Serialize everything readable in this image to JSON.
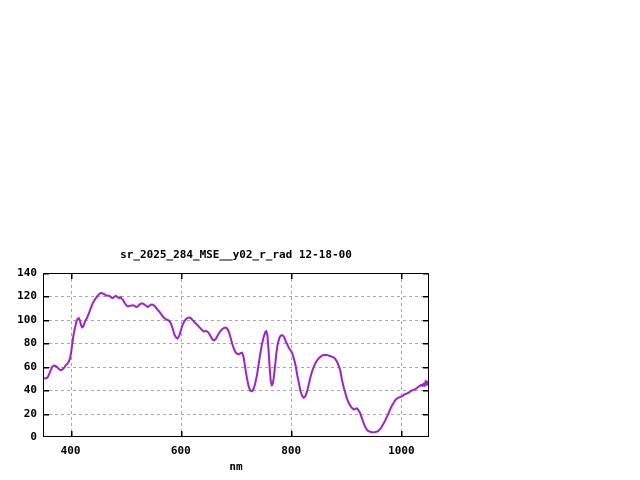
{
  "chart_data": {
    "type": "line",
    "title": "sr_2025_284_MSE__y02_r_rad 12-18-00",
    "xlabel": "nm",
    "ylabel": "",
    "xlim": [
      350,
      1050
    ],
    "ylim": [
      0,
      140
    ],
    "xticks": [
      400,
      600,
      800,
      1000
    ],
    "yticks": [
      0,
      20,
      40,
      60,
      80,
      100,
      120,
      140
    ],
    "grid": true,
    "legend_position": "none",
    "line_color": "#a020d0",
    "grid_color": "#a8a8a8",
    "border_color": "#000000",
    "x": [
      350,
      354,
      358,
      361,
      364,
      367,
      370,
      373,
      376,
      379,
      382,
      385,
      388,
      391,
      394,
      397,
      399,
      401,
      403,
      405,
      407,
      409,
      411,
      413,
      415,
      417,
      419,
      421,
      423,
      425,
      427,
      429,
      431,
      434,
      437,
      440,
      443,
      446,
      449,
      452,
      455,
      458,
      461,
      464,
      467,
      470,
      473,
      476,
      479,
      482,
      485,
      488,
      490,
      492,
      495,
      498,
      501,
      504,
      507,
      510,
      513,
      516,
      519,
      522,
      525,
      528,
      531,
      534,
      537,
      540,
      543,
      546,
      549,
      552,
      555,
      558,
      561,
      564,
      567,
      570,
      573,
      576,
      579,
      582,
      585,
      588,
      591,
      594,
      597,
      600,
      603,
      606,
      609,
      612,
      615,
      618,
      621,
      624,
      627,
      630,
      633,
      636,
      639,
      642,
      645,
      648,
      651,
      654,
      657,
      660,
      663,
      666,
      669,
      672,
      675,
      678,
      681,
      684,
      687,
      690,
      693,
      696,
      699,
      702,
      705,
      708,
      711,
      714,
      717,
      720,
      723,
      726,
      729,
      732,
      735,
      738,
      741,
      744,
      747,
      750,
      753,
      755,
      757,
      759,
      761,
      763,
      765,
      767,
      769,
      771,
      773,
      775,
      777,
      779,
      781,
      784,
      787,
      790,
      793,
      796,
      799,
      802,
      805,
      808,
      811,
      814,
      817,
      820,
      823,
      826,
      829,
      832,
      835,
      838,
      841,
      844,
      847,
      850,
      853,
      856,
      859,
      862,
      865,
      868,
      871,
      874,
      877,
      880,
      883,
      886,
      889,
      892,
      895,
      898,
      901,
      904,
      907,
      910,
      913,
      916,
      919,
      922,
      925,
      928,
      931,
      934,
      937,
      940,
      943,
      946,
      949,
      952,
      955,
      958,
      961,
      964,
      967,
      970,
      973,
      976,
      979,
      982,
      985,
      988,
      991,
      994,
      997,
      1000,
      1003,
      1006,
      1009,
      1012,
      1015,
      1018,
      1021,
      1024,
      1027,
      1030,
      1033,
      1036,
      1038,
      1040,
      1042,
      1044,
      1046,
      1048,
      1050
    ],
    "series": [
      {
        "name": "sr_2025_284_MSE__y02_r_rad",
        "values": [
          50,
          50,
          50.5,
          53.5,
          57,
          60,
          61,
          60.5,
          59.5,
          58,
          57,
          57.5,
          59,
          61,
          62.5,
          64.5,
          67,
          72,
          79,
          86,
          91,
          95,
          99,
          101,
          101.5,
          99.5,
          95.5,
          93.5,
          94.5,
          97,
          99.5,
          101,
          103,
          106.5,
          110.5,
          114,
          116.5,
          118.5,
          120.5,
          122,
          123,
          122.5,
          122,
          121,
          120.5,
          120.5,
          119.5,
          118.5,
          119.5,
          120.5,
          119.5,
          118.5,
          119.5,
          118.5,
          117,
          114.5,
          112.5,
          111.5,
          112,
          112,
          112.5,
          112,
          111,
          111.5,
          113,
          114,
          114,
          113,
          112,
          111,
          112,
          113,
          113,
          112,
          110.5,
          108.5,
          107,
          105,
          103,
          101.5,
          100.5,
          100,
          99,
          97,
          93,
          88,
          85,
          84,
          86.5,
          91,
          95.5,
          98.5,
          100.5,
          101.5,
          102,
          101.5,
          100,
          98.5,
          97,
          95.5,
          94,
          92.5,
          91,
          90,
          90.5,
          90,
          88.5,
          86,
          83.5,
          82.5,
          83.5,
          86,
          88.5,
          90.5,
          92,
          93,
          93.5,
          92.5,
          90,
          85,
          80,
          75.5,
          72.5,
          71,
          70.5,
          71.5,
          72,
          68,
          58,
          50,
          43,
          39.5,
          39,
          41,
          46,
          53,
          62,
          71,
          79,
          85,
          89.5,
          90.5,
          87,
          75,
          60,
          48,
          44,
          46,
          52,
          62,
          71,
          78,
          82,
          85,
          86.5,
          87,
          85.5,
          82,
          79,
          76,
          74,
          71.5,
          67,
          61,
          53,
          46,
          39,
          35,
          33.5,
          35,
          39,
          45,
          51,
          56,
          60,
          63,
          65.5,
          67,
          68.5,
          69.5,
          70,
          70,
          70,
          69.5,
          69,
          68.5,
          68,
          66.5,
          64.5,
          61,
          57,
          49,
          43,
          38,
          33,
          29.5,
          27,
          25,
          23.5,
          24,
          24.5,
          23,
          20.5,
          16.5,
          12.5,
          9,
          6.5,
          5,
          4.5,
          4,
          4,
          4,
          4.5,
          5,
          6.5,
          8.5,
          11,
          13.5,
          16.5,
          19.5,
          23,
          26,
          28.5,
          31,
          32.5,
          33.5,
          34,
          34.5,
          35.5,
          36.5,
          37,
          37.5,
          38.5,
          39.5,
          40,
          40.5,
          41.5,
          42.5,
          43.5,
          44.5,
          43.5,
          45.5,
          43.5,
          48,
          44.5,
          47,
          45
        ]
      }
    ]
  }
}
